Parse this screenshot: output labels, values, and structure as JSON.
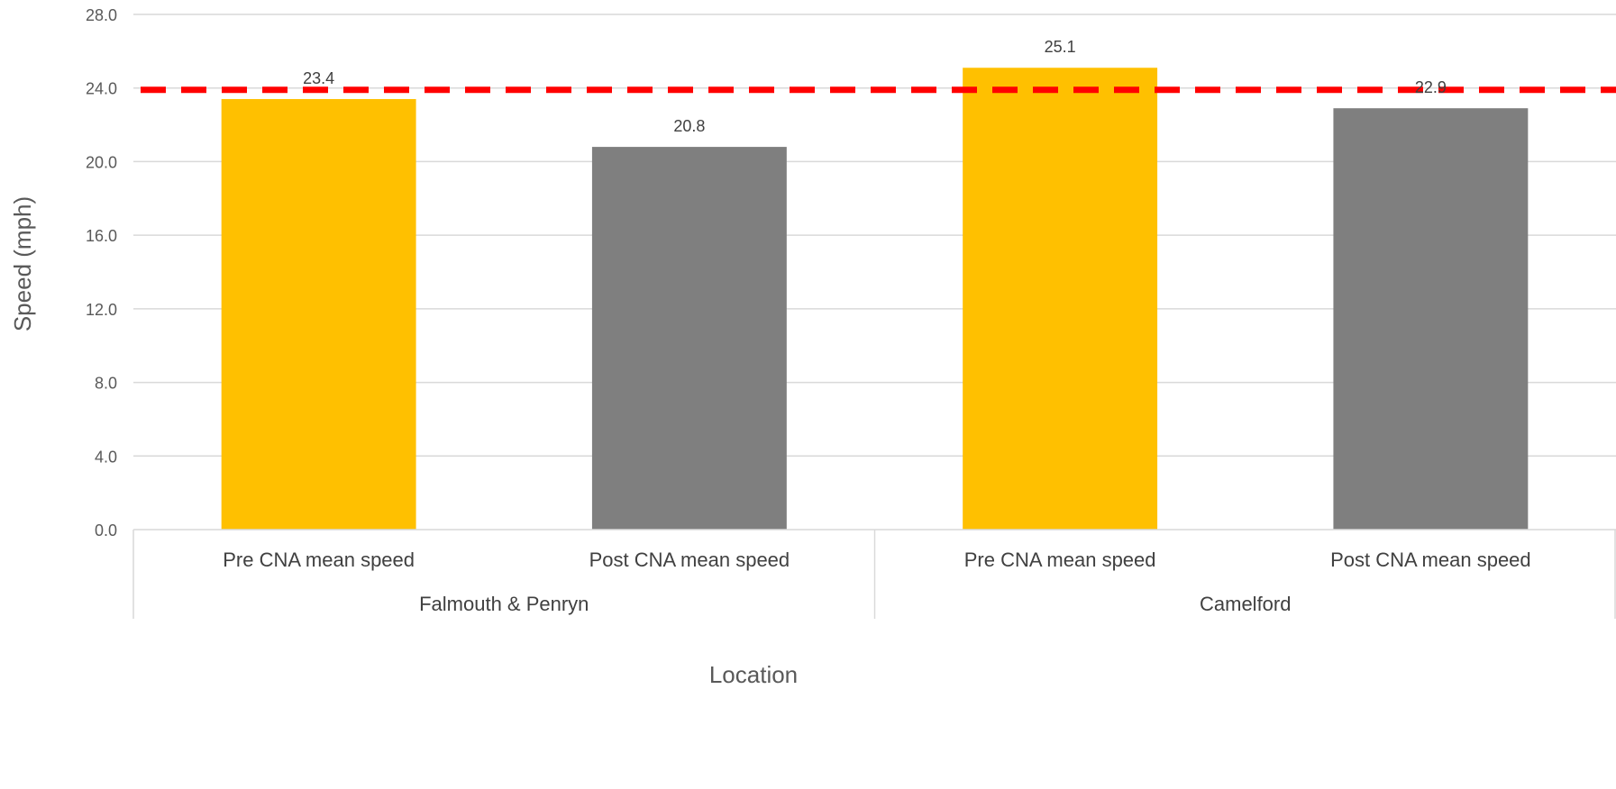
{
  "chart_data": {
    "type": "bar",
    "title": "",
    "xlabel": "Location",
    "ylabel": "Speed (mph)",
    "ylim": [
      0,
      28
    ],
    "y_ticks": [
      "0.0",
      "4.0",
      "8.0",
      "12.0",
      "16.0",
      "20.0",
      "24.0",
      "28.0"
    ],
    "grid": true,
    "legend": "none",
    "groups": [
      {
        "label": "Falmouth & Penryn",
        "bars": [
          {
            "category": "Pre CNA mean speed",
            "value": 23.4,
            "label": "23.4",
            "color": "#FFC000"
          },
          {
            "category": "Post CNA mean speed",
            "value": 20.8,
            "label": "20.8",
            "color": "#7F7F7F"
          }
        ]
      },
      {
        "label": "Camelford",
        "bars": [
          {
            "category": "Pre CNA mean speed",
            "value": 25.1,
            "label": "25.1",
            "color": "#FFC000"
          },
          {
            "category": "Post CNA mean speed",
            "value": 22.9,
            "label": "22.9",
            "color": "#7F7F7F"
          }
        ]
      }
    ],
    "reference_line": {
      "value": 23.9,
      "style": "dashed",
      "color": "#FF0000"
    }
  }
}
